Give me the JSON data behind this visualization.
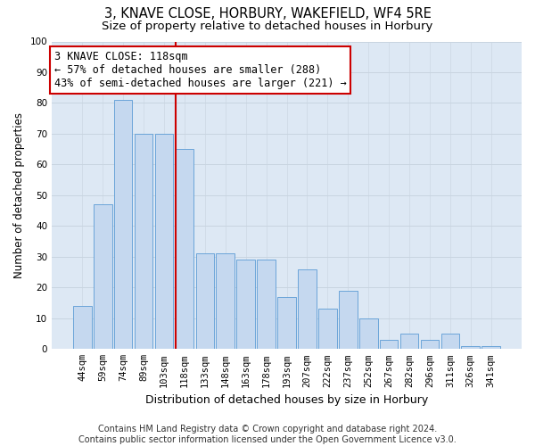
{
  "title": "3, KNAVE CLOSE, HORBURY, WAKEFIELD, WF4 5RE",
  "subtitle": "Size of property relative to detached houses in Horbury",
  "xlabel": "Distribution of detached houses by size in Horbury",
  "ylabel": "Number of detached properties",
  "categories": [
    "44sqm",
    "59sqm",
    "74sqm",
    "89sqm",
    "103sqm",
    "118sqm",
    "133sqm",
    "148sqm",
    "163sqm",
    "178sqm",
    "193sqm",
    "207sqm",
    "222sqm",
    "237sqm",
    "252sqm",
    "267sqm",
    "282sqm",
    "296sqm",
    "311sqm",
    "326sqm",
    "341sqm"
  ],
  "values": [
    14,
    47,
    81,
    70,
    70,
    65,
    31,
    31,
    29,
    29,
    17,
    26,
    13,
    19,
    10,
    3,
    5,
    3,
    5,
    1,
    1
  ],
  "bar_color": "#c5d8ef",
  "bar_edge_color": "#5b9bd5",
  "vline_x": 4.575,
  "vline_color": "#cc0000",
  "annotation_text": "3 KNAVE CLOSE: 118sqm\n← 57% of detached houses are smaller (288)\n43% of semi-detached houses are larger (221) →",
  "annotation_box_color": "#ffffff",
  "annotation_box_edge": "#cc0000",
  "ylim": [
    0,
    100
  ],
  "yticks": [
    0,
    10,
    20,
    30,
    40,
    50,
    60,
    70,
    80,
    90,
    100
  ],
  "grid_color": "#c8d4e0",
  "bg_color": "#dde8f4",
  "footnote": "Contains HM Land Registry data © Crown copyright and database right 2024.\nContains public sector information licensed under the Open Government Licence v3.0.",
  "title_fontsize": 10.5,
  "subtitle_fontsize": 9.5,
  "xlabel_fontsize": 9,
  "ylabel_fontsize": 8.5,
  "tick_fontsize": 7.5,
  "annotation_fontsize": 8.5,
  "footnote_fontsize": 7
}
